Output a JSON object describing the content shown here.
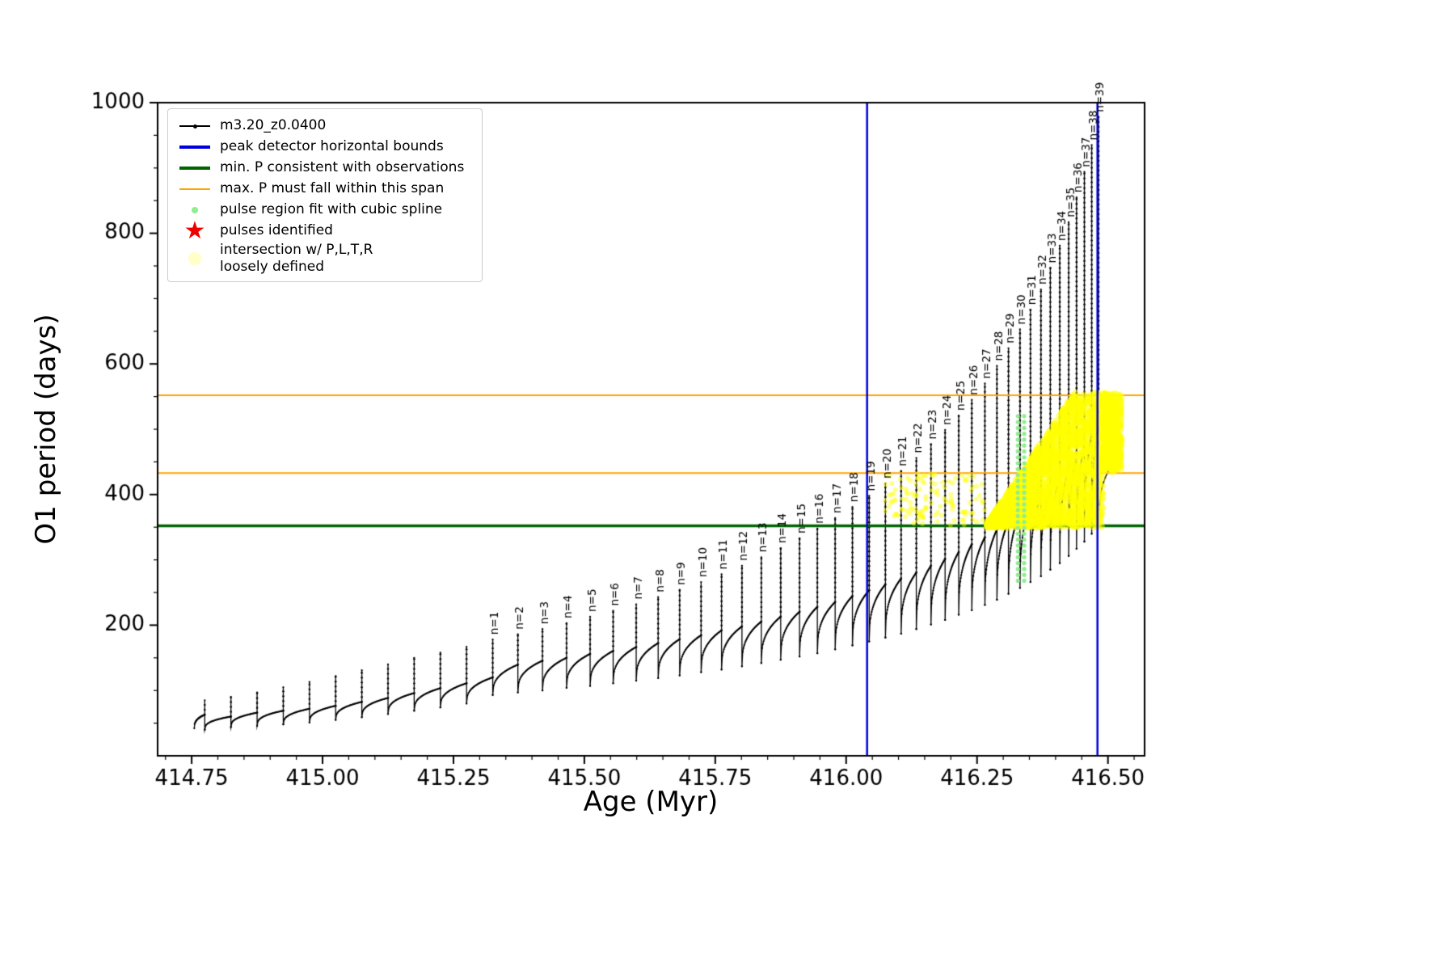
{
  "legend": {
    "items": [
      {
        "id": "series",
        "symbol": "line-marker",
        "color": "#000000",
        "label": "m3.20_z0.0400",
        "icon": "line-marker-icon"
      },
      {
        "id": "peak-detector-bounds",
        "symbol": "thick-line",
        "color": "#0000dd",
        "label": "peak detector horizontal bounds",
        "icon": "blue-line-icon"
      },
      {
        "id": "min-p-observations",
        "symbol": "thick-line",
        "color": "#006400",
        "label": "min. P consistent with observations",
        "icon": "green-line-icon"
      },
      {
        "id": "max-p-span",
        "symbol": "line",
        "color": "#ffa500",
        "label": "max. P must fall within this span",
        "icon": "orange-line-icon"
      },
      {
        "id": "pulse-region-fit",
        "symbol": "dot-small",
        "color": "#90ee90",
        "label": "pulse region fit with cubic spline",
        "icon": "green-dot-icon"
      },
      {
        "id": "pulses-identified",
        "symbol": "star",
        "color": "#ee0000",
        "label": "pulses identified",
        "icon": "red-star-icon"
      },
      {
        "id": "intersection",
        "symbol": "dot-large",
        "color": "#ffff99",
        "label": "intersection w/ P,L,T,R",
        "label2": "loosely defined",
        "icon": "yellow-dot-icon"
      }
    ]
  },
  "chart_data": {
    "type": "line",
    "title": "",
    "xlabel": "Age (Myr)",
    "ylabel": "O1 period (days)",
    "series_name": "m3.20_z0.0400",
    "series_color": "#000000",
    "xlim": [
      414.685,
      416.57
    ],
    "ylim": [
      0,
      1000
    ],
    "xticks": [
      414.75,
      415.0,
      415.25,
      415.5,
      415.75,
      416.0,
      416.25,
      416.5
    ],
    "yticks": [
      200,
      400,
      600,
      800,
      1000
    ],
    "x_minor": 0.05,
    "y_minor": 50,
    "grid": false,
    "legend_position": "upper left",
    "vlines": [
      {
        "x": 416.04,
        "color": "#0000dd",
        "width": 2.5,
        "label": "peak detector horizontal bounds"
      },
      {
        "x": 416.48,
        "color": "#0000dd",
        "width": 2.5,
        "label": "peak detector horizontal bounds"
      }
    ],
    "hlines": [
      {
        "y": 352,
        "color": "#006400",
        "width": 3.5,
        "label": "min. P consistent with observations"
      },
      {
        "y": 433,
        "color": "#ffa500",
        "width": 2,
        "label": "max. P must fall within this span"
      },
      {
        "y": 552,
        "color": "#ffa500",
        "width": 2,
        "label": "max. P must fall within this span"
      }
    ],
    "curve_start": [
      414.755,
      42
    ],
    "curve_end": [
      416.52,
      460
    ],
    "pre_pulses": [
      [
        414.775,
        40,
        85
      ],
      [
        414.825,
        44,
        90
      ],
      [
        414.875,
        46,
        97
      ],
      [
        414.925,
        48,
        105
      ],
      [
        414.975,
        51,
        113
      ],
      [
        415.025,
        55,
        122
      ],
      [
        415.075,
        59,
        131
      ],
      [
        415.125,
        64,
        140
      ],
      [
        415.175,
        69,
        150
      ],
      [
        415.225,
        74,
        158
      ],
      [
        415.275,
        80,
        167
      ]
    ],
    "pulses": [
      [
        415.325,
        93,
        178,
        "n=1"
      ],
      [
        415.373,
        97,
        186,
        "n=2"
      ],
      [
        415.42,
        100,
        194,
        "n=3"
      ],
      [
        415.466,
        104,
        203,
        "n=4"
      ],
      [
        415.511,
        107,
        213,
        "n=5"
      ],
      [
        415.555,
        111,
        222,
        "n=6"
      ],
      [
        415.599,
        115,
        232,
        "n=7"
      ],
      [
        415.641,
        119,
        243,
        "n=8"
      ],
      [
        415.682,
        123,
        254,
        "n=9"
      ],
      [
        415.723,
        128,
        266,
        "n=10"
      ],
      [
        415.762,
        132,
        278,
        "n=11"
      ],
      [
        415.801,
        137,
        291,
        "n=12"
      ],
      [
        415.838,
        142,
        304,
        "n=13"
      ],
      [
        415.875,
        147,
        318,
        "n=14"
      ],
      [
        415.911,
        152,
        333,
        "n=15"
      ],
      [
        415.945,
        157,
        348,
        "n=16"
      ],
      [
        415.979,
        163,
        364,
        "n=17"
      ],
      [
        416.012,
        169,
        381,
        "n=18"
      ],
      [
        416.044,
        175,
        398,
        "n=19"
      ],
      [
        416.075,
        181,
        417,
        "n=20"
      ],
      [
        416.105,
        187,
        436,
        "n=21"
      ],
      [
        416.134,
        194,
        456,
        "n=22"
      ],
      [
        416.162,
        201,
        477,
        "n=23"
      ],
      [
        416.189,
        208,
        499,
        "n=24"
      ],
      [
        416.215,
        216,
        521,
        "n=25"
      ],
      [
        416.24,
        223,
        545,
        "n=26"
      ],
      [
        416.265,
        231,
        570,
        "n=27"
      ],
      [
        416.288,
        239,
        597,
        "n=28"
      ],
      [
        416.31,
        248,
        624,
        "n=29"
      ],
      [
        416.332,
        257,
        653,
        "n=30"
      ],
      [
        416.352,
        266,
        683,
        "n=31"
      ],
      [
        416.372,
        275,
        714,
        "n=32"
      ],
      [
        416.39,
        285,
        747,
        "n=33"
      ],
      [
        416.408,
        295,
        781,
        "n=34"
      ],
      [
        416.425,
        306,
        817,
        "n=35"
      ],
      [
        416.44,
        317,
        855,
        "n=36"
      ],
      [
        416.455,
        328,
        894,
        "n=37"
      ],
      [
        416.469,
        340,
        935,
        "n=38"
      ],
      [
        416.482,
        352,
        978,
        "n=39"
      ]
    ],
    "yellow_scatter": {
      "x0": 416.265,
      "x1": 416.525,
      "y0": 350,
      "y1": 555,
      "ramp": 0.17,
      "notch_x": 416.49,
      "notch_y": 435,
      "count": 2600,
      "r": 4.5,
      "color": "#ffff00",
      "alpha": 0.5
    },
    "yellow_sparse": {
      "x0": 416.07,
      "x1": 416.265,
      "y0": 353,
      "y1": 433,
      "count": 130,
      "r": 3,
      "color": "#ffff00",
      "alpha": 0.45
    },
    "green_spline_dots": {
      "x": [
        416.328,
        416.34
      ],
      "y0": 268,
      "y1": 523,
      "step": 9,
      "r": 2.6,
      "color": "#90ee90"
    }
  }
}
